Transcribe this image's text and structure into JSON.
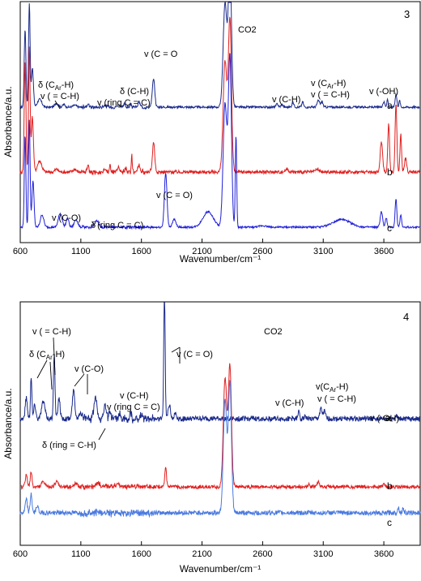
{
  "chart_data": [
    {
      "type": "line",
      "panel_label": "3",
      "xlabel": "Wavenumber/cm⁻¹",
      "ylabel": "Absorbance/a.u.",
      "xlim": [
        600,
        3900
      ],
      "x_ticks": [
        600,
        1100,
        1600,
        2100,
        2600,
        3100,
        3600
      ],
      "y_ticks": [],
      "grid": false,
      "series": [
        {
          "name": "a",
          "color": "#1a2a8c",
          "offset": 0.7,
          "peaks": [
            [
              640,
              0.6,
              10
            ],
            [
              675,
              0.8,
              9
            ],
            [
              700,
              0.3,
              12
            ],
            [
              760,
              0.06,
              25
            ],
            [
              900,
              0.03,
              20
            ],
            [
              960,
              0.02,
              15
            ],
            [
              1050,
              0.015,
              20
            ],
            [
              1160,
              0.025,
              12
            ],
            [
              1300,
              0.015,
              20
            ],
            [
              1410,
              0.02,
              15
            ],
            [
              1460,
              0.025,
              10
            ],
            [
              1510,
              0.02,
              10
            ],
            [
              1580,
              0.04,
              12
            ],
            [
              1700,
              0.22,
              14
            ],
            [
              2290,
              0.8,
              22
            ],
            [
              2330,
              1.1,
              18
            ],
            [
              2720,
              0.025,
              12
            ],
            [
              2760,
              0.02,
              12
            ],
            [
              2850,
              0.035,
              12
            ],
            [
              2930,
              0.04,
              10
            ],
            [
              3060,
              0.05,
              15
            ],
            [
              3090,
              0.04,
              12
            ],
            [
              3600,
              0.04,
              12
            ],
            [
              3630,
              0.06,
              8
            ],
            [
              3700,
              0.1,
              10
            ],
            [
              3730,
              0.05,
              8
            ]
          ],
          "noise": 0.008
        },
        {
          "name": "b",
          "color": "#e02020",
          "offset": 0.38,
          "peaks": [
            [
              640,
              0.8,
              10
            ],
            [
              675,
              0.9,
              9
            ],
            [
              700,
              0.4,
              12
            ],
            [
              760,
              0.08,
              25
            ],
            [
              900,
              0.02,
              20
            ],
            [
              1050,
              0.02,
              20
            ],
            [
              1160,
              0.04,
              10
            ],
            [
              1300,
              0.03,
              10
            ],
            [
              1340,
              0.05,
              6
            ],
            [
              1410,
              0.04,
              10
            ],
            [
              1470,
              0.03,
              10
            ],
            [
              1520,
              0.12,
              5
            ],
            [
              1580,
              0.05,
              12
            ],
            [
              1700,
              0.22,
              13
            ],
            [
              2290,
              0.8,
              22
            ],
            [
              2330,
              1.1,
              18
            ],
            [
              2800,
              0.02,
              20
            ],
            [
              3050,
              0.02,
              20
            ],
            [
              3580,
              0.22,
              14
            ],
            [
              3640,
              0.35,
              10
            ],
            [
              3700,
              0.5,
              10
            ],
            [
              3740,
              0.28,
              9
            ],
            [
              3780,
              0.1,
              12
            ]
          ],
          "noise": 0.012
        },
        {
          "name": "c",
          "color": "#2020d8",
          "offset": 0.0,
          "peaks": [
            [
              640,
              0.6,
              9
            ],
            [
              675,
              0.7,
              9
            ],
            [
              705,
              0.3,
              12
            ],
            [
              780,
              0.08,
              20
            ],
            [
              930,
              0.09,
              22
            ],
            [
              990,
              0.06,
              15
            ],
            [
              1060,
              0.05,
              20
            ],
            [
              1230,
              0.04,
              25
            ],
            [
              1800,
              0.35,
              15
            ],
            [
              1870,
              0.05,
              20
            ],
            [
              2150,
              0.1,
              60
            ],
            [
              2290,
              0.8,
              22
            ],
            [
              2330,
              1.1,
              18
            ],
            [
              2380,
              0.6,
              8
            ],
            [
              2600,
              0.01,
              40
            ],
            [
              3250,
              0.05,
              100
            ],
            [
              3580,
              0.1,
              14
            ],
            [
              3620,
              0.06,
              10
            ],
            [
              3700,
              0.18,
              10
            ],
            [
              3740,
              0.08,
              10
            ]
          ],
          "noise": 0.006
        }
      ],
      "annotations": [
        "v (C = O",
        "δ (C-H)",
        "v (ring C = C)",
        "δ (C",
        "Ar",
        "-H)",
        "v ( = C-H)",
        "v (C-H)",
        "v (C",
        "Ar",
        "-H)",
        "v ( = C-H)",
        "v (-OH)",
        "CO2",
        "v (C = O)",
        "v (C-O)",
        "δ",
        "(ring C = C)"
      ],
      "series_labels": [
        "a",
        "b",
        "c"
      ]
    },
    {
      "type": "line",
      "panel_label": "4",
      "xlabel": "Wavenumber/cm⁻¹",
      "ylabel": "Absorbance/a.u.",
      "xlim": [
        600,
        3900
      ],
      "x_ticks": [
        600,
        1100,
        1600,
        2100,
        2600,
        3100,
        3600
      ],
      "y_ticks": [],
      "grid": false,
      "series": [
        {
          "name": "a",
          "color": "#1a2a8c",
          "offset": 0.58,
          "peaks": [
            [
              650,
              0.15,
              12
            ],
            [
              690,
              0.3,
              8
            ],
            [
              720,
              0.1,
              12
            ],
            [
              790,
              0.12,
              20
            ],
            [
              880,
              0.45,
              9
            ],
            [
              920,
              0.15,
              12
            ],
            [
              1040,
              0.2,
              14
            ],
            [
              1100,
              0.05,
              20
            ],
            [
              1220,
              0.15,
              16
            ],
            [
              1300,
              0.08,
              15
            ],
            [
              1340,
              0.05,
              12
            ],
            [
              1420,
              0.03,
              12
            ],
            [
              1510,
              0.04,
              10
            ],
            [
              1600,
              0.03,
              15
            ],
            [
              1790,
              0.95,
              8
            ],
            [
              1830,
              0.1,
              15
            ],
            [
              1880,
              0.04,
              12
            ],
            [
              2900,
              0.06,
              8
            ],
            [
              2950,
              0.03,
              8
            ],
            [
              3080,
              0.07,
              14
            ],
            [
              3110,
              0.05,
              12
            ],
            [
              3700,
              0.02,
              10
            ]
          ],
          "noise": 0.018
        },
        {
          "name": "b",
          "color": "#e02020",
          "offset": 0.3,
          "peaks": [
            [
              650,
              0.1,
              12
            ],
            [
              690,
              0.12,
              10
            ],
            [
              790,
              0.04,
              20
            ],
            [
              900,
              0.04,
              20
            ],
            [
              1060,
              0.03,
              20
            ],
            [
              1240,
              0.03,
              20
            ],
            [
              1400,
              0.02,
              20
            ],
            [
              1800,
              0.15,
              10
            ],
            [
              2290,
              0.9,
              20
            ],
            [
              2330,
              1.0,
              18
            ],
            [
              2980,
              0.02,
              10
            ],
            [
              3060,
              0.04,
              15
            ],
            [
              3600,
              0.02,
              10
            ]
          ],
          "noise": 0.014
        },
        {
          "name": "c",
          "color": "#4a7ae0",
          "offset": 0.12,
          "peaks": [
            [
              650,
              0.1,
              12
            ],
            [
              690,
              0.15,
              10
            ],
            [
              740,
              0.06,
              12
            ],
            [
              2290,
              0.88,
              20
            ],
            [
              2330,
              1.0,
              18
            ],
            [
              3720,
              0.04,
              10
            ],
            [
              3760,
              0.03,
              10
            ]
          ],
          "noise": 0.018
        }
      ],
      "annotations": [
        "v ( = C-H)",
        "δ (C",
        "Ar",
        "-H)",
        "v (C-O)",
        "v (C-H)",
        "v (ring C = C)",
        "δ (ring = C-H)",
        "v (C = O)",
        "CO2",
        "v (C-H)",
        "v(C",
        "Ar",
        "-H)",
        "v ( = C-H)",
        "v (-OH)"
      ],
      "series_labels": [
        "a",
        "b",
        "c"
      ]
    }
  ]
}
